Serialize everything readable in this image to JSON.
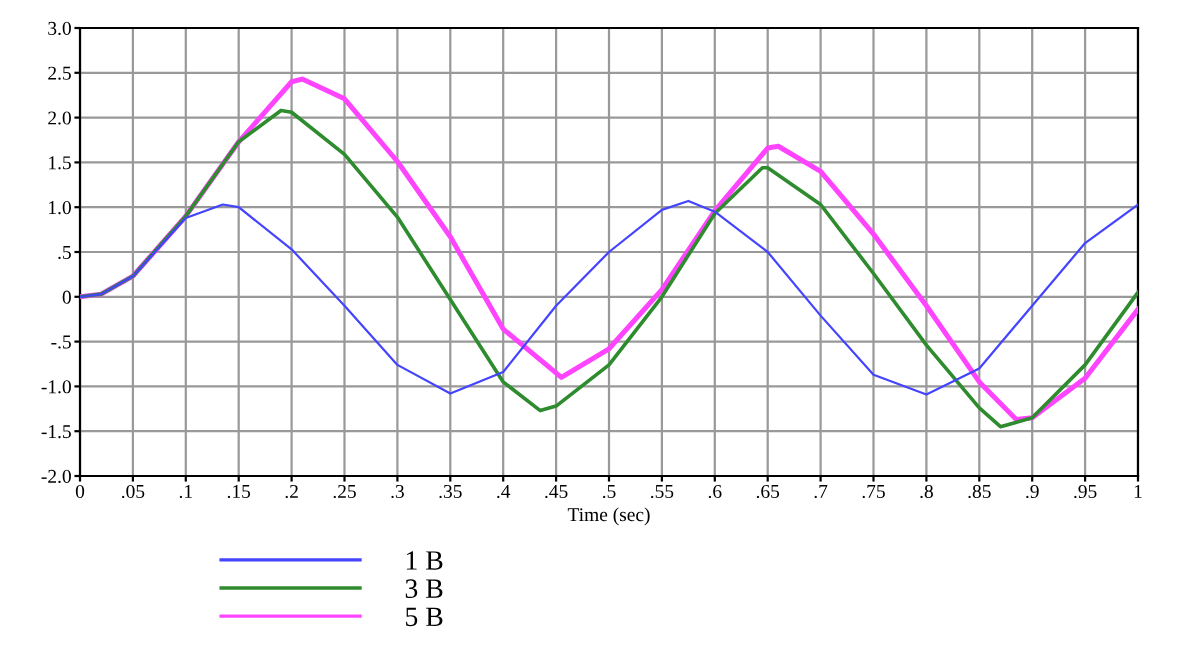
{
  "chart_data": {
    "type": "line",
    "xlabel": "Time (sec)",
    "xlim": [
      0,
      1
    ],
    "ylim": [
      -2.0,
      3.0
    ],
    "xticks": [
      0,
      {
        "value": 0.05,
        "label": ".05"
      },
      {
        "value": 0.1,
        "label": ".1"
      },
      {
        "value": 0.15,
        "label": ".15"
      },
      {
        "value": 0.2,
        "label": ".2"
      },
      {
        "value": 0.25,
        "label": ".25"
      },
      {
        "value": 0.3,
        "label": ".3"
      },
      {
        "value": 0.35,
        "label": ".35"
      },
      {
        "value": 0.4,
        "label": ".4"
      },
      {
        "value": 0.45,
        "label": ".45"
      },
      {
        "value": 0.5,
        "label": ".5"
      },
      {
        "value": 0.55,
        "label": ".55"
      },
      {
        "value": 0.6,
        "label": ".6"
      },
      {
        "value": 0.65,
        "label": ".65"
      },
      {
        "value": 0.7,
        "label": ".7"
      },
      {
        "value": 0.75,
        "label": ".75"
      },
      {
        "value": 0.8,
        "label": ".8"
      },
      {
        "value": 0.85,
        "label": ".85"
      },
      {
        "value": 0.9,
        "label": ".9"
      },
      {
        "value": 0.95,
        "label": ".95"
      },
      1
    ],
    "yticks": [
      {
        "value": -2.0,
        "label": "-2.0"
      },
      {
        "value": -1.5,
        "label": "-1.5"
      },
      {
        "value": -1.0,
        "label": "-1.0"
      },
      {
        "value": -0.5,
        "label": "-.5"
      },
      0,
      {
        "value": 0.5,
        "label": ".5"
      },
      {
        "value": 1.0,
        "label": "1.0"
      },
      {
        "value": 1.5,
        "label": "1.5"
      },
      {
        "value": 2.0,
        "label": "2.0"
      },
      {
        "value": 2.5,
        "label": "2.5"
      },
      {
        "value": 3.0,
        "label": "3.0"
      }
    ],
    "grid": true,
    "legend": "bottom left",
    "marker": "none",
    "line_style": "solid",
    "series": [
      {
        "name": "1 B",
        "color": "#4444ff",
        "x": [
          0,
          0.02,
          0.05,
          0.1,
          0.135,
          0.15,
          0.2,
          0.25,
          0.3,
          0.35,
          0.4,
          0.45,
          0.5,
          0.55,
          0.575,
          0.6,
          0.65,
          0.7,
          0.75,
          0.8,
          0.85,
          0.9,
          0.95,
          1
        ],
        "values": [
          0,
          0.03,
          0.23,
          0.88,
          1.03,
          1.0,
          0.53,
          -0.1,
          -0.76,
          -1.08,
          -0.84,
          -0.1,
          0.5,
          0.97,
          1.07,
          0.95,
          0.5,
          -0.21,
          -0.87,
          -1.09,
          -0.8,
          -0.1,
          0.6,
          1.03
        ]
      },
      {
        "name": "3 B",
        "color": "#2e8b2e",
        "x": [
          0,
          0.02,
          0.05,
          0.1,
          0.15,
          0.19,
          0.2,
          0.25,
          0.3,
          0.35,
          0.4,
          0.435,
          0.45,
          0.5,
          0.55,
          0.6,
          0.645,
          0.65,
          0.7,
          0.75,
          0.8,
          0.85,
          0.87,
          0.9,
          0.95,
          1
        ],
        "values": [
          0,
          0.03,
          0.23,
          0.9,
          1.73,
          2.08,
          2.06,
          1.59,
          0.89,
          -0.03,
          -0.95,
          -1.27,
          -1.22,
          -0.76,
          0.0,
          0.93,
          1.44,
          1.44,
          1.03,
          0.26,
          -0.54,
          -1.24,
          -1.45,
          -1.35,
          -0.76,
          0.05
        ]
      },
      {
        "name": "5 B",
        "color": "#ff44ff",
        "x": [
          0,
          0.02,
          0.05,
          0.1,
          0.15,
          0.2,
          0.21,
          0.25,
          0.3,
          0.35,
          0.4,
          0.455,
          0.5,
          0.55,
          0.6,
          0.65,
          0.66,
          0.7,
          0.75,
          0.8,
          0.85,
          0.885,
          0.9,
          0.95,
          1
        ],
        "values": [
          0,
          0.03,
          0.23,
          0.9,
          1.73,
          2.4,
          2.43,
          2.21,
          1.51,
          0.67,
          -0.36,
          -0.9,
          -0.58,
          0.08,
          0.96,
          1.66,
          1.68,
          1.4,
          0.7,
          -0.1,
          -0.95,
          -1.37,
          -1.35,
          -0.91,
          -0.14
        ]
      }
    ]
  }
}
